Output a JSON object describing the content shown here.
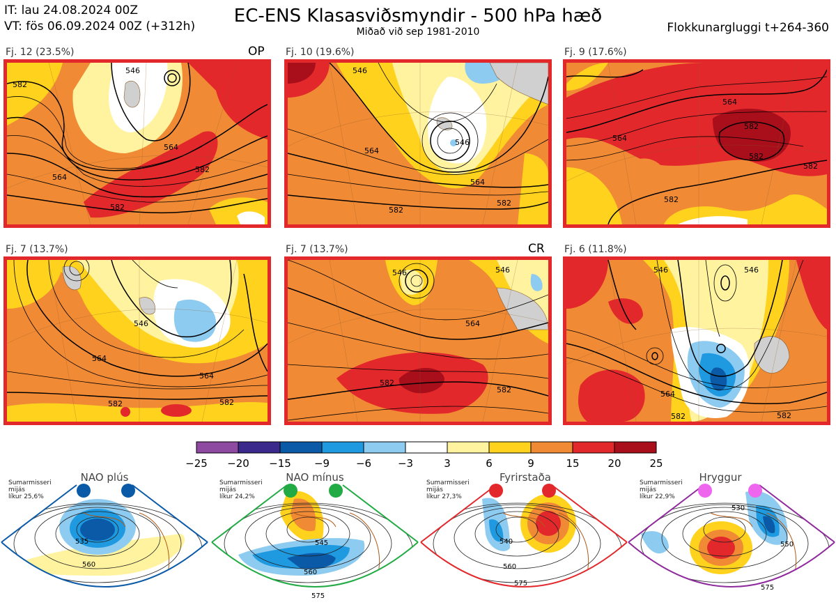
{
  "header": {
    "it_line": "IT: lau 24.08.2024 00Z",
    "vt_line": "VT: fös 06.09.2024 00Z  (+312h)",
    "title": "EC-ENS Klasasviðsmyndir - 500 hPa hæð",
    "subtitle": "Miðað við sep 1981-2010",
    "window": "Flokkunargluggi t+264-360"
  },
  "panels": [
    {
      "caption": "Fj. 12 (23.5%)",
      "tag": "OP",
      "contours": [
        "582",
        "564",
        "546",
        "564",
        "582",
        "582"
      ]
    },
    {
      "caption": "Fj. 10 (19.6%)",
      "tag": "",
      "contours": [
        "546",
        "564",
        "546",
        "564",
        "582",
        "582"
      ]
    },
    {
      "caption": "Fj. 9 (17.6%)",
      "tag": "",
      "contours": [
        "564",
        "564",
        "582",
        "582",
        "582",
        "582"
      ]
    },
    {
      "caption": "Fj. 7 (13.7%)",
      "tag": "",
      "contours": [
        "546",
        "564",
        "564",
        "582",
        "582"
      ]
    },
    {
      "caption": "Fj. 7 (13.7%)",
      "tag": "CR",
      "contours": [
        "546",
        "564",
        "582",
        "546",
        "582"
      ]
    },
    {
      "caption": "Fj. 6 (11.8%)",
      "tag": "",
      "contours": [
        "546",
        "546",
        "564",
        "582",
        "582"
      ]
    }
  ],
  "colorbar": {
    "colors": [
      "#8e4aa0",
      "#3b2a8c",
      "#0b5aa8",
      "#1f9ae0",
      "#8ecbf0",
      "#ffffff",
      "#fff3a0",
      "#ffd21e",
      "#f08a35",
      "#e3282c",
      "#a80f1a"
    ],
    "labels": [
      "−25",
      "−20",
      "−15",
      "−9",
      "−6",
      "−3",
      "3",
      "6",
      "9",
      "15",
      "20",
      "25"
    ]
  },
  "regimes": [
    {
      "name": "NAO plús",
      "note": [
        "Sumarmisseri",
        "mijás",
        "líkur 25,6%"
      ],
      "color": "#0b5aa8",
      "labels": [
        "535",
        "560"
      ]
    },
    {
      "name": "NAO mínus",
      "note": [
        "Sumarmisseri",
        "mijás",
        "líkur 24,2%"
      ],
      "color": "#22aa44",
      "labels": [
        "545",
        "560",
        "575"
      ]
    },
    {
      "name": "Fyrirstaða",
      "note": [
        "Sumarmisseri",
        "mijás",
        "líkur 27,3%"
      ],
      "color": "#e3282c",
      "labels": [
        "540",
        "560",
        "575"
      ]
    },
    {
      "name": "Hryggur",
      "note": [
        "Sumarmisseri",
        "mijás",
        "líkur 22,9%"
      ],
      "color": "#ee66ee",
      "labels": [
        "530",
        "550",
        "575"
      ]
    }
  ]
}
